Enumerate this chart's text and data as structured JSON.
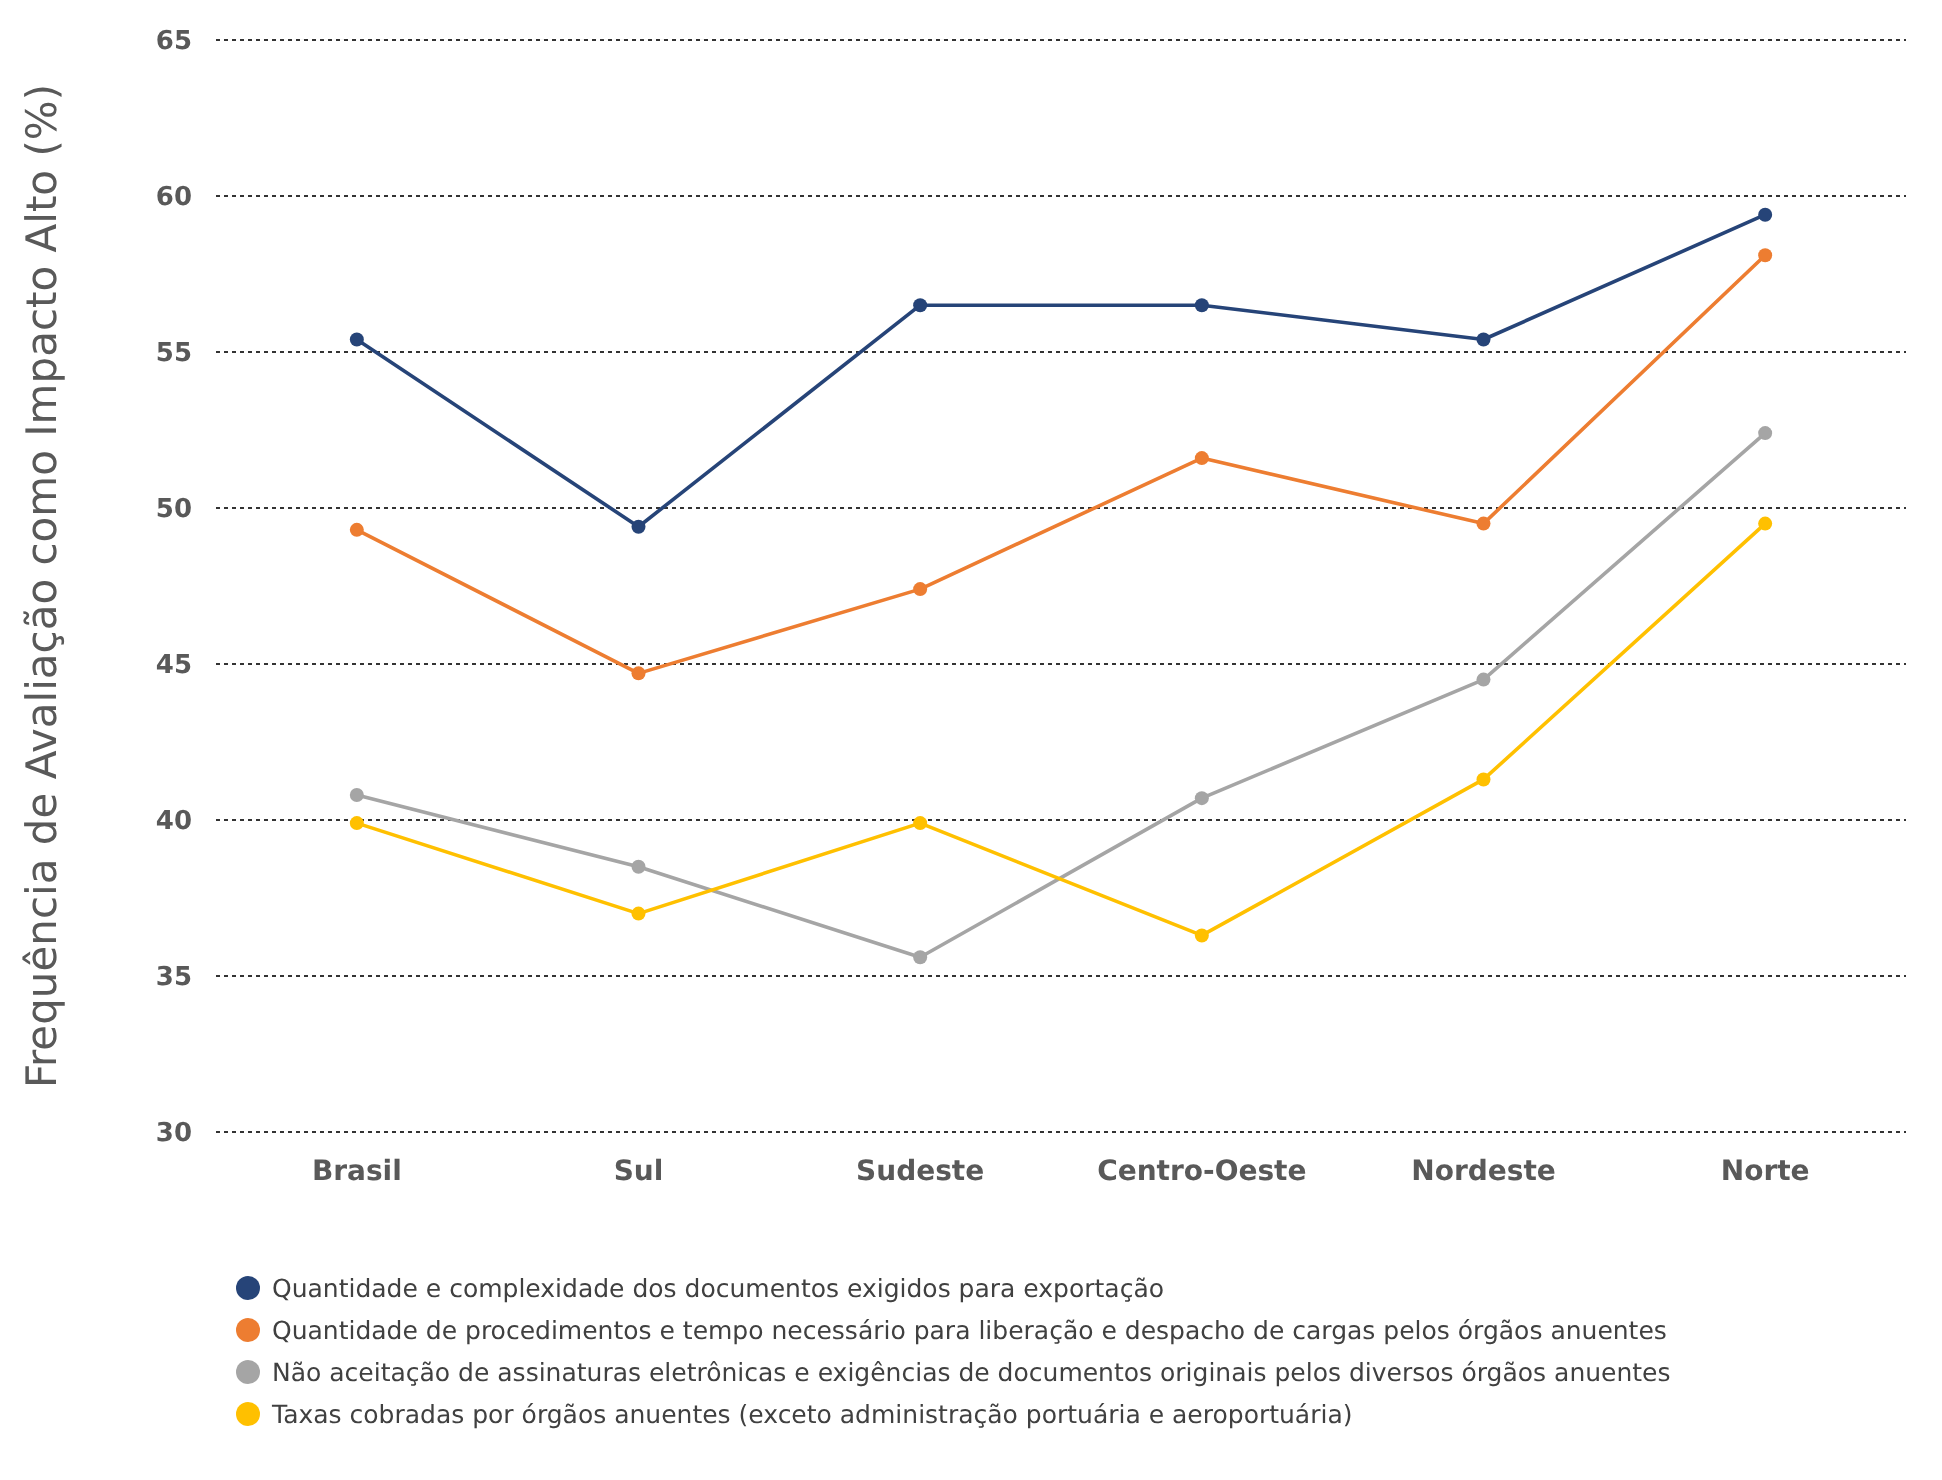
{
  "chart_data": {
    "type": "line",
    "ylabel": "Frequência de Avaliação como Impacto Alto (%)",
    "categories": [
      "Brasil",
      "Sul",
      "Sudeste",
      "Centro-Oeste",
      "Nordeste",
      "Norte"
    ],
    "series": [
      {
        "name": "Quantidade e complexidade dos documentos exigidos para exportação",
        "color": "#264478",
        "values": [
          55.4,
          49.4,
          56.5,
          56.5,
          55.4,
          59.4
        ]
      },
      {
        "name": "Quantidade de procedimentos e tempo necessário para liberação e despacho de cargas pelos órgãos anuentes",
        "color": "#ed7d31",
        "values": [
          49.3,
          44.7,
          47.4,
          51.6,
          49.5,
          58.1
        ]
      },
      {
        "name": "Não aceitação de assinaturas eletrônicas e exigências de documentos originais pelos diversos órgãos anuentes",
        "color": "#a5a5a5",
        "values": [
          40.8,
          38.5,
          35.6,
          40.7,
          44.5,
          52.4
        ]
      },
      {
        "name": "Taxas cobradas por órgãos anuentes (exceto administração portuária e aeroportuária)",
        "color": "#ffc000",
        "values": [
          39.9,
          37.0,
          39.9,
          36.3,
          41.3,
          49.5
        ]
      }
    ],
    "ylim": [
      30,
      65
    ],
    "yticks": [
      30,
      35,
      40,
      45,
      50,
      55,
      60,
      65
    ],
    "grid": "y",
    "legend": "bottom",
    "marker": "circle",
    "line_style": "solid"
  }
}
